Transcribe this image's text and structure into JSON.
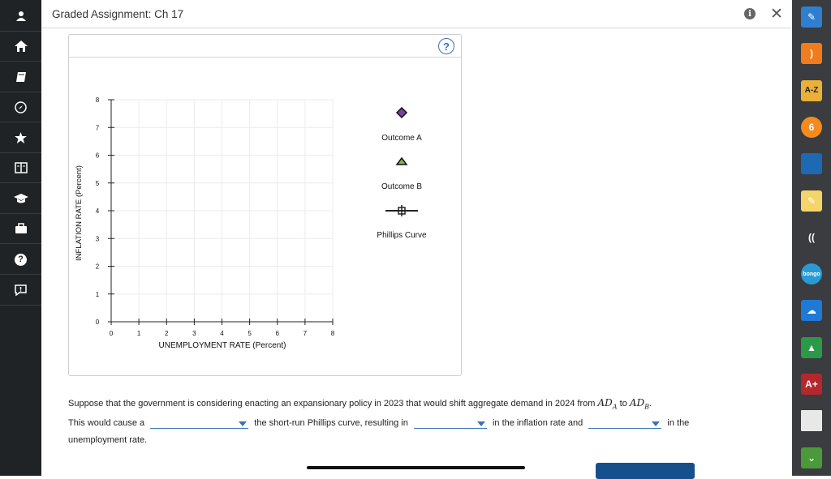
{
  "header": {
    "title": "Graded Assignment: Ch 17",
    "info_icon": "i",
    "close_icon": "✕"
  },
  "left_nav": [
    "profile-icon",
    "home-icon",
    "book-icon",
    "compass-icon",
    "star-icon",
    "library-icon",
    "graduation-cap-icon",
    "briefcase-icon",
    "help-icon",
    "feedback-icon"
  ],
  "right_tools": [
    {
      "name": "highlighter-tool-icon",
      "text": "✎",
      "color": "#2f7fd0"
    },
    {
      "name": "rss-tool-icon",
      "text": ")",
      "color": "#f07c1e"
    },
    {
      "name": "glossary-tool-icon",
      "text": "A-Z",
      "color": "#e9b03a"
    },
    {
      "name": "sync-tool-icon",
      "text": "6",
      "color": "#f58a1f"
    },
    {
      "name": "notebook-tool-icon",
      "text": "",
      "color": "#1e69b4"
    },
    {
      "name": "notes-tool-icon",
      "text": "✎",
      "color": "#f5d46a"
    },
    {
      "name": "readspeaker-tool-icon",
      "text": "((",
      "color": "#3a3c3f"
    },
    {
      "name": "bongo-tool-icon",
      "text": "bongo",
      "color": "#2a9ad6"
    },
    {
      "name": "onedrive-tool-icon",
      "text": "☁",
      "color": "#1f79d6"
    },
    {
      "name": "google-drive-tool-icon",
      "text": "▲",
      "color": "#2a9a48"
    },
    {
      "name": "aplia-tool-icon",
      "text": "A+",
      "color": "#b4272c"
    },
    {
      "name": "flashcards-tool-icon",
      "text": "",
      "color": "#e8e8e8"
    },
    {
      "name": "expand-tool-icon",
      "text": "⌄",
      "color": "#4a9a3a"
    }
  ],
  "panel": {
    "help_label": "?"
  },
  "chart_data": {
    "type": "scatter",
    "title": "",
    "xlabel": "UNEMPLOYMENT RATE (Percent)",
    "ylabel": "INFLATION RATE (Percent)",
    "xlim": [
      0,
      8
    ],
    "ylim": [
      0,
      8
    ],
    "x_ticks": [
      "0",
      "1",
      "2",
      "3",
      "4",
      "5",
      "6",
      "7",
      "8"
    ],
    "y_ticks": [
      "0",
      "1",
      "2",
      "3",
      "4",
      "5",
      "6",
      "7",
      "8"
    ],
    "grid": true,
    "series": []
  },
  "legend": [
    {
      "label": "Outcome A",
      "marker": "diamond",
      "color": "#7b3fa0"
    },
    {
      "label": "Outcome B",
      "marker": "triangle",
      "color": "#7fb844"
    },
    {
      "label": "Phillips Curve",
      "marker": "line-cross",
      "color": "#222222"
    }
  ],
  "question": {
    "part1": "Suppose that the government is considering enacting an expansionary policy in 2023 that would shift aggregate demand in 2024 from",
    "ad": "AD",
    "sub_a": "A",
    "to": "to",
    "sub_b": "B",
    "period": ".",
    "part2": "This would cause a",
    "part3": "the short-run Phillips curve, resulting in",
    "part4": "in the inflation rate and",
    "part5": "in the",
    "part6": "unemployment rate."
  }
}
